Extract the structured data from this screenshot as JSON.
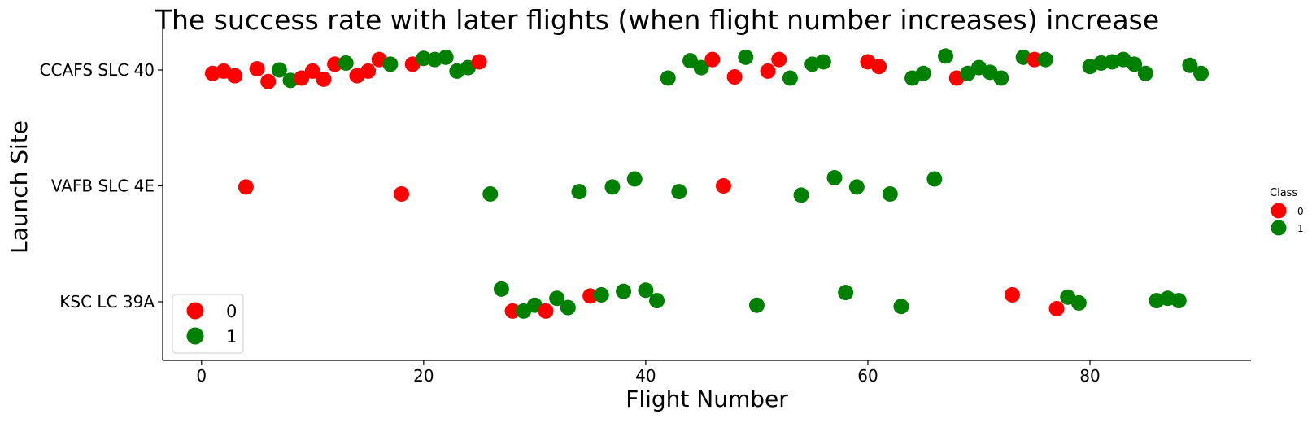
{
  "chart_data": {
    "type": "scatter",
    "title": "The success rate with later flights (when flight number increases) increase",
    "xlabel": "Flight Number",
    "ylabel": "Launch Site",
    "xlim": [
      -3.5,
      94.5
    ],
    "x_ticks": [
      0,
      20,
      40,
      60,
      80
    ],
    "categories": [
      "CCAFS SLC 40",
      "VAFB SLC 4E",
      "KSC LC 39A"
    ],
    "grid": false,
    "legend_placement": "lower-left",
    "legend_entries": [
      "0",
      "1"
    ],
    "side_legend": {
      "placement": "right",
      "title": "Class",
      "entries": [
        "0",
        "1"
      ]
    },
    "colors": {
      "0": "#ff0000",
      "1": "#008000"
    },
    "points": [
      {
        "x": 1,
        "site": "CCAFS SLC 40",
        "class": 0,
        "jitter": -0.03
      },
      {
        "x": 2,
        "site": "CCAFS SLC 40",
        "class": 0,
        "jitter": -0.01
      },
      {
        "x": 3,
        "site": "CCAFS SLC 40",
        "class": 0,
        "jitter": -0.05
      },
      {
        "x": 5,
        "site": "CCAFS SLC 40",
        "class": 0,
        "jitter": 0.01
      },
      {
        "x": 6,
        "site": "CCAFS SLC 40",
        "class": 0,
        "jitter": -0.1
      },
      {
        "x": 7,
        "site": "CCAFS SLC 40",
        "class": 1,
        "jitter": 0.0
      },
      {
        "x": 8,
        "site": "CCAFS SLC 40",
        "class": 1,
        "jitter": -0.09
      },
      {
        "x": 9,
        "site": "CCAFS SLC 40",
        "class": 0,
        "jitter": -0.07
      },
      {
        "x": 10,
        "site": "CCAFS SLC 40",
        "class": 0,
        "jitter": -0.01
      },
      {
        "x": 11,
        "site": "CCAFS SLC 40",
        "class": 0,
        "jitter": -0.08
      },
      {
        "x": 12,
        "site": "CCAFS SLC 40",
        "class": 0,
        "jitter": 0.05
      },
      {
        "x": 13,
        "site": "CCAFS SLC 40",
        "class": 1,
        "jitter": 0.06
      },
      {
        "x": 14,
        "site": "CCAFS SLC 40",
        "class": 0,
        "jitter": -0.05
      },
      {
        "x": 15,
        "site": "CCAFS SLC 40",
        "class": 0,
        "jitter": -0.01
      },
      {
        "x": 16,
        "site": "CCAFS SLC 40",
        "class": 0,
        "jitter": 0.09
      },
      {
        "x": 17,
        "site": "CCAFS SLC 40",
        "class": 1,
        "jitter": 0.05
      },
      {
        "x": 19,
        "site": "CCAFS SLC 40",
        "class": 0,
        "jitter": 0.05
      },
      {
        "x": 20,
        "site": "CCAFS SLC 40",
        "class": 1,
        "jitter": 0.1
      },
      {
        "x": 21,
        "site": "CCAFS SLC 40",
        "class": 1,
        "jitter": 0.09
      },
      {
        "x": 22,
        "site": "CCAFS SLC 40",
        "class": 1,
        "jitter": 0.11
      },
      {
        "x": 23,
        "site": "CCAFS SLC 40",
        "class": 1,
        "jitter": -0.01
      },
      {
        "x": 24,
        "site": "CCAFS SLC 40",
        "class": 1,
        "jitter": 0.02
      },
      {
        "x": 25,
        "site": "CCAFS SLC 40",
        "class": 0,
        "jitter": 0.07
      },
      {
        "x": 42,
        "site": "CCAFS SLC 40",
        "class": 1,
        "jitter": -0.07
      },
      {
        "x": 44,
        "site": "CCAFS SLC 40",
        "class": 1,
        "jitter": 0.08
      },
      {
        "x": 45,
        "site": "CCAFS SLC 40",
        "class": 1,
        "jitter": 0.02
      },
      {
        "x": 46,
        "site": "CCAFS SLC 40",
        "class": 0,
        "jitter": 0.09
      },
      {
        "x": 48,
        "site": "CCAFS SLC 40",
        "class": 0,
        "jitter": -0.06
      },
      {
        "x": 49,
        "site": "CCAFS SLC 40",
        "class": 1,
        "jitter": 0.11
      },
      {
        "x": 51,
        "site": "CCAFS SLC 40",
        "class": 0,
        "jitter": -0.01
      },
      {
        "x": 52,
        "site": "CCAFS SLC 40",
        "class": 0,
        "jitter": 0.09
      },
      {
        "x": 53,
        "site": "CCAFS SLC 40",
        "class": 1,
        "jitter": -0.07
      },
      {
        "x": 55,
        "site": "CCAFS SLC 40",
        "class": 1,
        "jitter": 0.05
      },
      {
        "x": 56,
        "site": "CCAFS SLC 40",
        "class": 1,
        "jitter": 0.07
      },
      {
        "x": 60,
        "site": "CCAFS SLC 40",
        "class": 0,
        "jitter": 0.07
      },
      {
        "x": 61,
        "site": "CCAFS SLC 40",
        "class": 0,
        "jitter": 0.03
      },
      {
        "x": 64,
        "site": "CCAFS SLC 40",
        "class": 1,
        "jitter": -0.07
      },
      {
        "x": 65,
        "site": "CCAFS SLC 40",
        "class": 1,
        "jitter": -0.03
      },
      {
        "x": 67,
        "site": "CCAFS SLC 40",
        "class": 1,
        "jitter": 0.12
      },
      {
        "x": 68,
        "site": "CCAFS SLC 40",
        "class": 0,
        "jitter": -0.07
      },
      {
        "x": 69,
        "site": "CCAFS SLC 40",
        "class": 1,
        "jitter": -0.03
      },
      {
        "x": 70,
        "site": "CCAFS SLC 40",
        "class": 1,
        "jitter": 0.02
      },
      {
        "x": 71,
        "site": "CCAFS SLC 40",
        "class": 1,
        "jitter": -0.02
      },
      {
        "x": 72,
        "site": "CCAFS SLC 40",
        "class": 1,
        "jitter": -0.07
      },
      {
        "x": 74,
        "site": "CCAFS SLC 40",
        "class": 1,
        "jitter": 0.11
      },
      {
        "x": 75,
        "site": "CCAFS SLC 40",
        "class": 0,
        "jitter": 0.09
      },
      {
        "x": 76,
        "site": "CCAFS SLC 40",
        "class": 1,
        "jitter": 0.09
      },
      {
        "x": 80,
        "site": "CCAFS SLC 40",
        "class": 1,
        "jitter": 0.03
      },
      {
        "x": 81,
        "site": "CCAFS SLC 40",
        "class": 1,
        "jitter": 0.06
      },
      {
        "x": 82,
        "site": "CCAFS SLC 40",
        "class": 1,
        "jitter": 0.07
      },
      {
        "x": 83,
        "site": "CCAFS SLC 40",
        "class": 1,
        "jitter": 0.09
      },
      {
        "x": 84,
        "site": "CCAFS SLC 40",
        "class": 1,
        "jitter": 0.05
      },
      {
        "x": 85,
        "site": "CCAFS SLC 40",
        "class": 1,
        "jitter": -0.03
      },
      {
        "x": 89,
        "site": "CCAFS SLC 40",
        "class": 1,
        "jitter": 0.04
      },
      {
        "x": 90,
        "site": "CCAFS SLC 40",
        "class": 1,
        "jitter": -0.03
      },
      {
        "x": 4,
        "site": "VAFB SLC 4E",
        "class": 0,
        "jitter": -0.01
      },
      {
        "x": 18,
        "site": "VAFB SLC 4E",
        "class": 0,
        "jitter": -0.07
      },
      {
        "x": 26,
        "site": "VAFB SLC 4E",
        "class": 1,
        "jitter": -0.07
      },
      {
        "x": 34,
        "site": "VAFB SLC 4E",
        "class": 1,
        "jitter": -0.05
      },
      {
        "x": 37,
        "site": "VAFB SLC 4E",
        "class": 1,
        "jitter": -0.01
      },
      {
        "x": 39,
        "site": "VAFB SLC 4E",
        "class": 1,
        "jitter": 0.06
      },
      {
        "x": 43,
        "site": "VAFB SLC 4E",
        "class": 1,
        "jitter": -0.05
      },
      {
        "x": 47,
        "site": "VAFB SLC 4E",
        "class": 0,
        "jitter": 0.0
      },
      {
        "x": 54,
        "site": "VAFB SLC 4E",
        "class": 1,
        "jitter": -0.08
      },
      {
        "x": 57,
        "site": "VAFB SLC 4E",
        "class": 1,
        "jitter": 0.07
      },
      {
        "x": 59,
        "site": "VAFB SLC 4E",
        "class": 1,
        "jitter": -0.01
      },
      {
        "x": 62,
        "site": "VAFB SLC 4E",
        "class": 1,
        "jitter": -0.07
      },
      {
        "x": 66,
        "site": "VAFB SLC 4E",
        "class": 1,
        "jitter": 0.06
      },
      {
        "x": 27,
        "site": "KSC LC 39A",
        "class": 1,
        "jitter": 0.11
      },
      {
        "x": 28,
        "site": "KSC LC 39A",
        "class": 0,
        "jitter": -0.08
      },
      {
        "x": 29,
        "site": "KSC LC 39A",
        "class": 1,
        "jitter": -0.08
      },
      {
        "x": 30,
        "site": "KSC LC 39A",
        "class": 1,
        "jitter": -0.03
      },
      {
        "x": 31,
        "site": "KSC LC 39A",
        "class": 0,
        "jitter": -0.08
      },
      {
        "x": 32,
        "site": "KSC LC 39A",
        "class": 1,
        "jitter": 0.03
      },
      {
        "x": 33,
        "site": "KSC LC 39A",
        "class": 1,
        "jitter": -0.05
      },
      {
        "x": 35,
        "site": "KSC LC 39A",
        "class": 0,
        "jitter": 0.05
      },
      {
        "x": 36,
        "site": "KSC LC 39A",
        "class": 1,
        "jitter": 0.06
      },
      {
        "x": 38,
        "site": "KSC LC 39A",
        "class": 1,
        "jitter": 0.09
      },
      {
        "x": 40,
        "site": "KSC LC 39A",
        "class": 1,
        "jitter": 0.1
      },
      {
        "x": 41,
        "site": "KSC LC 39A",
        "class": 1,
        "jitter": 0.01
      },
      {
        "x": 50,
        "site": "KSC LC 39A",
        "class": 1,
        "jitter": -0.03
      },
      {
        "x": 58,
        "site": "KSC LC 39A",
        "class": 1,
        "jitter": 0.08
      },
      {
        "x": 63,
        "site": "KSC LC 39A",
        "class": 1,
        "jitter": -0.04
      },
      {
        "x": 73,
        "site": "KSC LC 39A",
        "class": 0,
        "jitter": 0.06
      },
      {
        "x": 77,
        "site": "KSC LC 39A",
        "class": 0,
        "jitter": -0.06
      },
      {
        "x": 78,
        "site": "KSC LC 39A",
        "class": 1,
        "jitter": 0.04
      },
      {
        "x": 79,
        "site": "KSC LC 39A",
        "class": 1,
        "jitter": -0.01
      },
      {
        "x": 86,
        "site": "KSC LC 39A",
        "class": 1,
        "jitter": 0.01
      },
      {
        "x": 87,
        "site": "KSC LC 39A",
        "class": 1,
        "jitter": 0.03
      },
      {
        "x": 88,
        "site": "KSC LC 39A",
        "class": 1,
        "jitter": 0.01
      }
    ]
  }
}
